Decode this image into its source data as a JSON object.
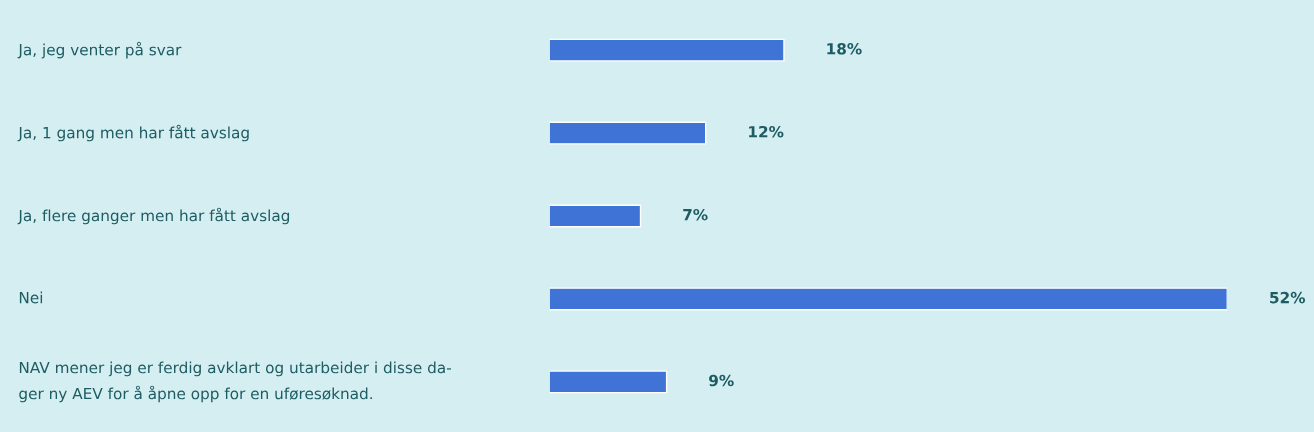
{
  "chart_data": {
    "type": "bar",
    "orientation": "horizontal",
    "categories": [
      "Ja, jeg venter på svar",
      "Ja, 1 gang men har fått avslag",
      "Ja, flere ganger men har fått avslag",
      "Nei",
      "NAV mener jeg er ferdig avklart og utarbeider i disse da-\nger ny AEV for å åpne opp for en uføresøknad."
    ],
    "values": [
      18,
      12,
      7,
      52,
      9
    ],
    "value_labels": [
      "18%",
      "12%",
      "7%",
      "52%",
      "9%"
    ],
    "color": "#3f74d6"
  }
}
